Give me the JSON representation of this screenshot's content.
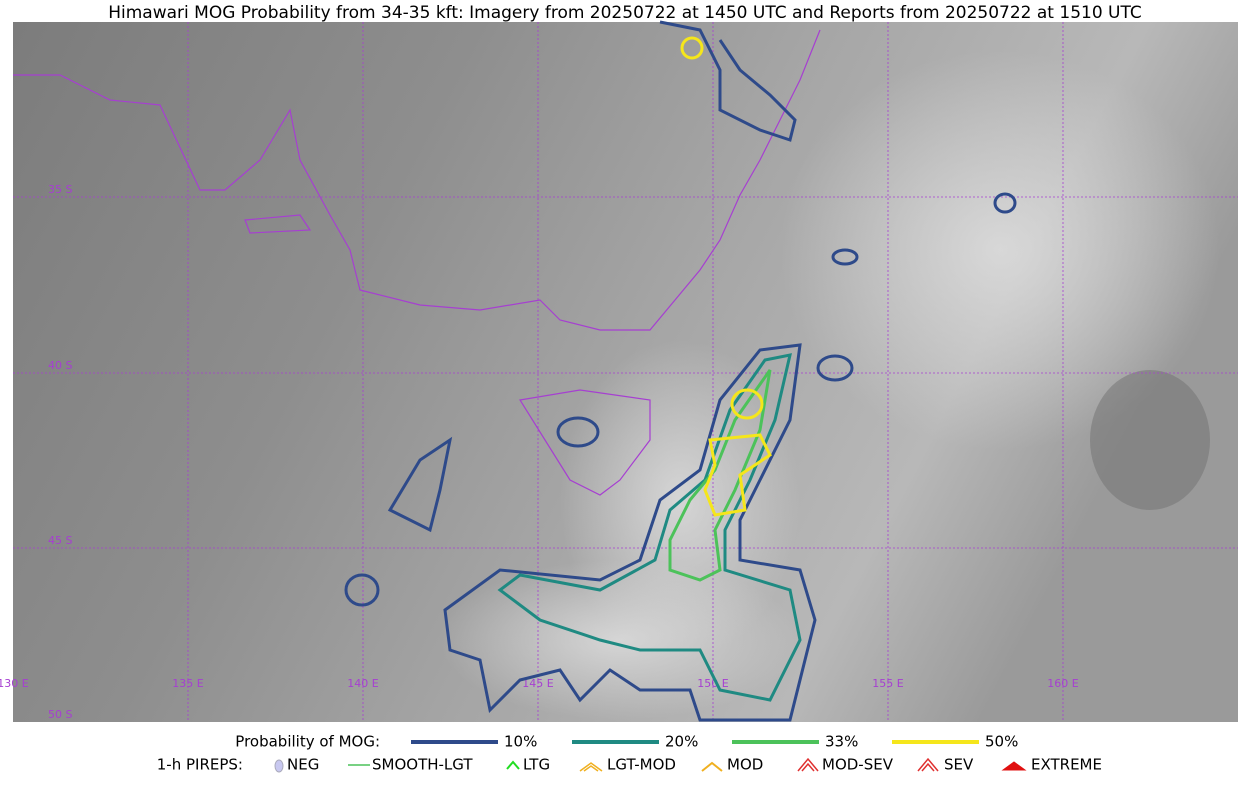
{
  "title": "Himawari MOG Probability from 34-35 kft: Imagery from 20250722 at 1450 UTC and Reports from 20250722 at 1510 UTC",
  "latitude_labels": [
    "35 S",
    "40 S",
    "45 S",
    "50 S"
  ],
  "longitude_labels": [
    "130 E",
    "135 E",
    "140 E",
    "145 E",
    "150 E",
    "155 E",
    "160 E"
  ],
  "legend": {
    "probability": {
      "label": "Probability of MOG:",
      "items": [
        "10%",
        "20%",
        "33%",
        "50%"
      ]
    },
    "pireps": {
      "label": "1-h PIREPS:",
      "items": [
        "NEG",
        "SMOOTH-LGT",
        "LTG",
        "LGT-MOD",
        "MOD",
        "MOD-SEV",
        "SEV",
        "EXTREME"
      ]
    }
  }
}
